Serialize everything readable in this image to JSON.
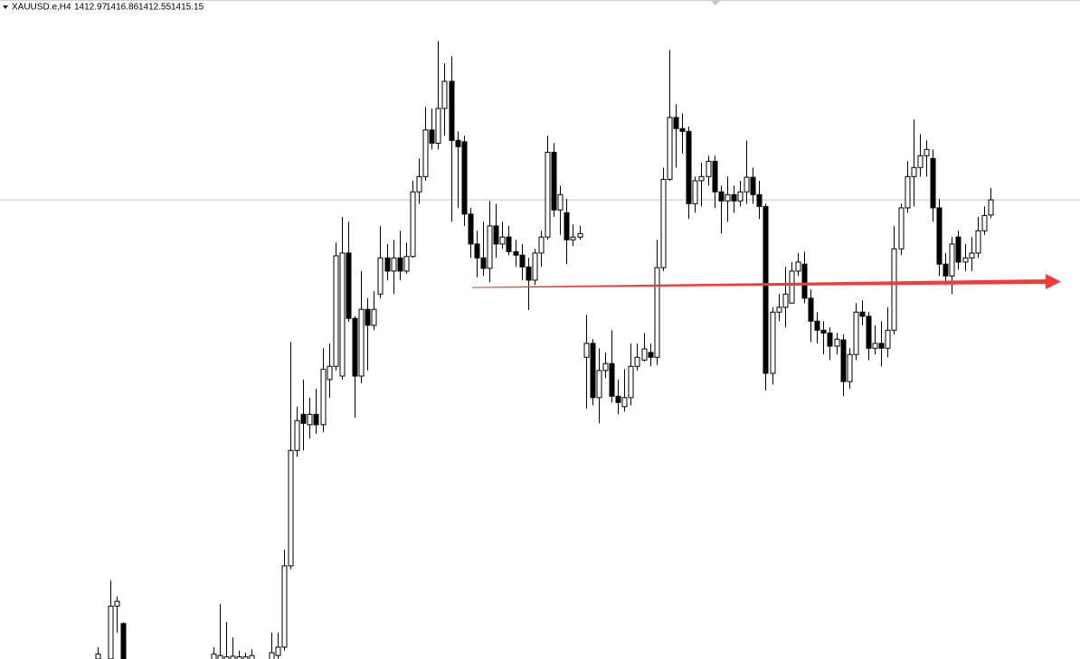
{
  "chart_data": {
    "type": "candlestick",
    "title": "XAUUSD.e,H4",
    "up_color": "#ffffff",
    "down_color": "#000000",
    "bid_line_color": "#c0c0c0",
    "ylim": [
      1349.1,
      1443.9
    ],
    "open": [
      1349.1,
      null,
      1349.1,
      1356.7,
      1354.2,
      null,
      null,
      null,
      null,
      null,
      null,
      null,
      null,
      null,
      null,
      null,
      null,
      null,
      1349.0,
      1348.3,
      1348.6,
      1348.9,
      1349.0,
      1349.0,
      1348.9,
      null,
      null,
      1348.3,
      1349.6,
      1350.8,
      1362.5,
      1379.1,
      1384.3,
      1382.8,
      1384.3,
      1382.8,
      1389.3,
      1391.2,
      1389.8,
      1407.5,
      1398.1,
      1389.8,
      1399.4,
      1397.1,
      1401.6,
      1406.8,
      1404.9,
      1406.8,
      1404.9,
      1407.0,
      1416.3,
      1418.5,
      1425.2,
      1423.3,
      1428.3,
      1432.2,
      1423.7,
      1423.5,
      1413.1,
      1408.8,
      1406.8,
      1405.3,
      1411.4,
      1408.8,
      1409.8,
      1407.7,
      1407.2,
      1405.5,
      1403.6,
      1407.5,
      1409.8,
      1422.0,
      1413.7,
      1413.3,
      1409.4,
      1409.8,
      1392.5,
      1394.5,
      1386.7,
      1390.6,
      1391.6,
      1386.9,
      1385.4,
      1386.7,
      1391.2,
      1392.1,
      1393.2,
      1392.5,
      1405.4,
      1418.1,
      1427.0,
      1425.4,
      1425.0,
      1414.6,
      1417.9,
      1418.5,
      1420.7,
      1416.3,
      1415.0,
      1415.9,
      1415.0,
      1416.3,
      1418.4,
      1415.9,
      1414.2,
      1390.2,
      1399.0,
      1399.7,
      1400.3,
      1404.9,
      1405.9,
      1401.0,
      1397.7,
      1396.4,
      1396.0,
      1394.1,
      1395.0,
      1389.0,
      1392.9,
      1399.0,
      1398.4,
      1393.8,
      1394.5,
      1393.8,
      1396.4,
      1408.1,
      1414.0,
      1418.5,
      1419.8,
      1421.5,
      1421.1,
      1414.0,
      1405.9,
      1404.2,
      1409.8,
      1406.2,
      1406.8,
      1407.5,
      1410.7,
      1412.97
    ],
    "high": [
      1350.8,
      null,
      1360.4,
      1358.1,
      1354.4,
      null,
      null,
      null,
      null,
      null,
      null,
      null,
      null,
      null,
      null,
      null,
      null,
      null,
      1350.8,
      1357.0,
      1354.4,
      1352.2,
      1350.3,
      1350.0,
      1350.5,
      null,
      null,
      1352.9,
      1352.9,
      1364.8,
      1394.7,
      1385.4,
      1389.3,
      1386.7,
      1388.0,
      1393.8,
      1394.5,
      1409.0,
      1412.7,
      1412.0,
      1398.4,
      1404.9,
      1401.0,
      1402.0,
      1411.4,
      1408.8,
      1409.4,
      1410.7,
      1409.0,
      1417.9,
      1421.1,
      1428.5,
      1428.3,
      1438.0,
      1434.8,
      1435.8,
      1425.0,
      1424.4,
      1414.0,
      1410.7,
      1412.0,
      1415.0,
      1414.6,
      1412.0,
      1411.4,
      1409.4,
      1408.8,
      1406.8,
      1408.1,
      1410.7,
      1424.4,
      1423.3,
      1417.2,
      1415.3,
      1411.6,
      1411.4,
      1398.6,
      1395.1,
      1393.8,
      1393.2,
      1396.4,
      1389.3,
      1390.8,
      1394.5,
      1394.5,
      1396.0,
      1394.5,
      1409.4,
      1419.8,
      1436.7,
      1428.9,
      1427.6,
      1425.7,
      1418.5,
      1420.5,
      1421.5,
      1421.5,
      1417.2,
      1418.5,
      1417.2,
      1417.9,
      1423.7,
      1419.8,
      1417.9,
      1414.6,
      1399.7,
      1401.6,
      1405.5,
      1406.2,
      1407.5,
      1407.7,
      1402.3,
      1399.0,
      1397.7,
      1396.8,
      1396.0,
      1395.8,
      1393.8,
      1400.3,
      1400.7,
      1399.0,
      1397.1,
      1397.7,
      1399.7,
      1411.4,
      1414.6,
      1420.7,
      1426.7,
      1424.6,
      1423.7,
      1422.4,
      1415.3,
      1407.5,
      1409.8,
      1410.7,
      1408.8,
      1409.8,
      1412.7,
      1414.2,
      1416.86
    ],
    "low": [
      1348.5,
      null,
      1348.5,
      1352.9,
      1347.7,
      null,
      null,
      null,
      null,
      null,
      null,
      null,
      null,
      null,
      null,
      null,
      null,
      null,
      1348.3,
      1347.7,
      1347.9,
      1348.2,
      1348.3,
      1348.5,
      1348.2,
      null,
      null,
      1347.7,
      1349.1,
      1350.3,
      1362.0,
      1378.2,
      1379.1,
      1380.8,
      1381.5,
      1381.7,
      1386.7,
      1390.6,
      1389.3,
      1397.6,
      1383.8,
      1388.8,
      1390.6,
      1396.4,
      1401.0,
      1403.6,
      1401.6,
      1403.6,
      1404.5,
      1406.8,
      1414.6,
      1417.9,
      1422.4,
      1422.4,
      1424.4,
      1412.0,
      1414.0,
      1411.4,
      1406.8,
      1404.0,
      1404.2,
      1403.3,
      1406.8,
      1408.1,
      1407.2,
      1405.5,
      1403.6,
      1399.3,
      1402.9,
      1405.5,
      1409.4,
      1412.7,
      1410.1,
      1405.9,
      1408.5,
      1409.4,
      1385.1,
      1385.6,
      1383.0,
      1389.5,
      1386.0,
      1384.3,
      1384.7,
      1385.6,
      1390.6,
      1391.9,
      1391.2,
      1391.4,
      1404.9,
      1417.9,
      1419.8,
      1421.8,
      1412.4,
      1413.3,
      1414.2,
      1417.2,
      1414.0,
      1410.3,
      1412.0,
      1413.3,
      1414.2,
      1414.6,
      1414.6,
      1412.4,
      1387.7,
      1388.6,
      1397.7,
      1396.8,
      1400.3,
      1404.2,
      1400.3,
      1394.7,
      1394.5,
      1392.9,
      1392.1,
      1392.9,
      1386.9,
      1388.0,
      1392.1,
      1397.1,
      1392.1,
      1392.9,
      1391.2,
      1392.5,
      1395.8,
      1407.2,
      1413.3,
      1414.2,
      1418.5,
      1418.5,
      1412.0,
      1404.2,
      1402.9,
      1401.6,
      1405.1,
      1404.9,
      1404.9,
      1406.8,
      1410.1,
      1412.55
    ],
    "close": [
      1349.8,
      null,
      1356.7,
      1357.4,
      1348.3,
      null,
      null,
      null,
      null,
      null,
      null,
      null,
      null,
      null,
      null,
      null,
      null,
      null,
      1349.8,
      1349.6,
      1349.4,
      1349.5,
      1349.4,
      1349.4,
      1349.6,
      null,
      null,
      1350.0,
      1350.8,
      1362.5,
      1379.1,
      1383.4,
      1383.0,
      1384.3,
      1382.8,
      1390.8,
      1391.2,
      1407.1,
      1407.5,
      1398.1,
      1389.8,
      1399.4,
      1397.1,
      1399.4,
      1406.8,
      1404.9,
      1406.8,
      1404.9,
      1407.0,
      1416.3,
      1418.5,
      1425.2,
      1423.3,
      1428.3,
      1432.2,
      1423.7,
      1422.8,
      1413.1,
      1408.8,
      1406.8,
      1405.3,
      1411.4,
      1408.8,
      1409.8,
      1407.7,
      1407.2,
      1405.5,
      1403.6,
      1407.5,
      1409.8,
      1422.0,
      1413.7,
      1415.9,
      1409.4,
      1409.8,
      1410.3,
      1394.5,
      1386.7,
      1390.6,
      1391.6,
      1386.9,
      1386.0,
      1386.7,
      1391.2,
      1392.5,
      1393.7,
      1392.5,
      1405.4,
      1418.1,
      1427.0,
      1425.4,
      1425.0,
      1414.6,
      1417.9,
      1418.5,
      1420.7,
      1416.3,
      1415.0,
      1415.9,
      1415.0,
      1416.3,
      1418.4,
      1415.9,
      1414.2,
      1390.2,
      1399.0,
      1399.7,
      1401.6,
      1404.9,
      1406.2,
      1401.0,
      1397.7,
      1396.4,
      1396.0,
      1394.1,
      1395.1,
      1389.0,
      1392.9,
      1399.0,
      1398.4,
      1393.8,
      1394.5,
      1393.8,
      1396.4,
      1408.1,
      1414.0,
      1418.5,
      1419.8,
      1421.5,
      1422.4,
      1414.0,
      1405.9,
      1404.2,
      1408.8,
      1406.2,
      1406.8,
      1407.5,
      1410.7,
      1412.9,
      1415.15
    ]
  }
}
